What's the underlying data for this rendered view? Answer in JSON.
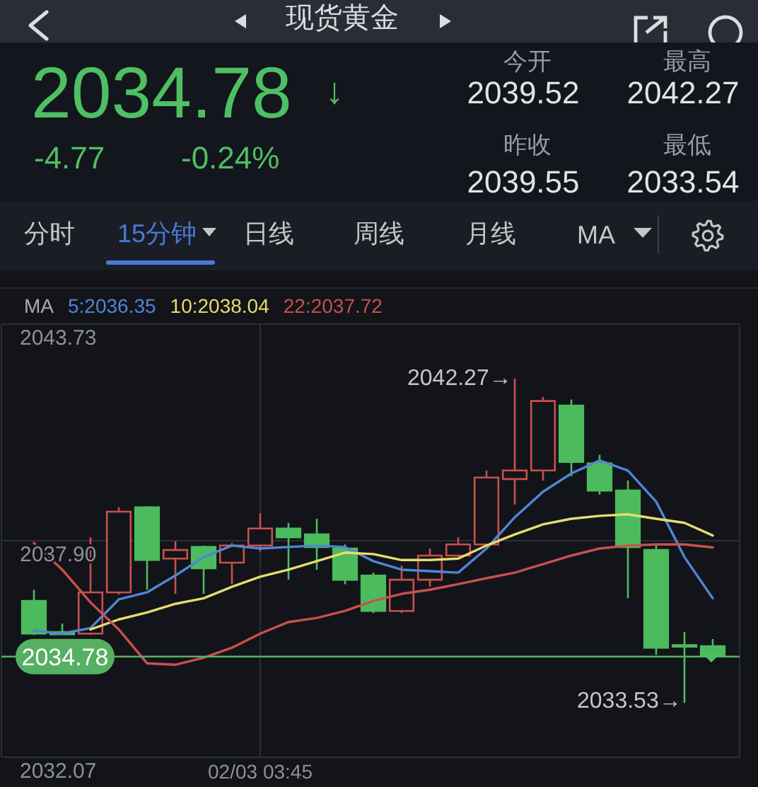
{
  "chart_data": {
    "type": "candlestick",
    "title": "现货黄金",
    "categories": [
      null,
      null,
      null,
      null,
      null,
      null,
      null,
      null,
      "02/03 03:45",
      null,
      null,
      null,
      null,
      null,
      null,
      null,
      null,
      null,
      null,
      null,
      null,
      null,
      null,
      null,
      null
    ],
    "ohlc": [
      [
        2036.28,
        2036.58,
        2035.36,
        2035.4
      ],
      [
        2035.44,
        2035.67,
        2035.36,
        2035.38
      ],
      [
        2035.4,
        2037.99,
        2035.36,
        2036.51
      ],
      [
        2036.51,
        2038.8,
        2036.45,
        2038.68
      ],
      [
        2038.8,
        2038.83,
        2036.58,
        2037.38
      ],
      [
        2037.42,
        2037.88,
        2036.47,
        2037.65
      ],
      [
        2037.73,
        2037.77,
        2036.47,
        2037.16
      ],
      [
        2037.31,
        2037.84,
        2036.73,
        2037.77
      ],
      [
        2037.77,
        2038.64,
        2037.61,
        2038.23
      ],
      [
        2038.23,
        2038.38,
        2036.85,
        2037.99
      ],
      [
        2038.07,
        2038.49,
        2037.12,
        2037.73
      ],
      [
        2037.69,
        2037.8,
        2036.73,
        2036.85
      ],
      [
        2036.96,
        2037.04,
        2035.95,
        2036.01
      ],
      [
        2036.01,
        2037.23,
        2035.95,
        2036.85
      ],
      [
        2036.85,
        2037.69,
        2036.66,
        2037.5
      ],
      [
        2037.5,
        2037.99,
        2037.46,
        2037.8
      ],
      [
        2037.8,
        2039.79,
        2037.73,
        2039.6
      ],
      [
        2039.56,
        2042.27,
        2038.87,
        2039.79
      ],
      [
        2039.79,
        2041.77,
        2039.52,
        2041.66
      ],
      [
        2041.54,
        2041.7,
        2039.64,
        2040.02
      ],
      [
        2039.98,
        2040.21,
        2039.14,
        2039.25
      ],
      [
        2039.25,
        2039.52,
        2036.35,
        2037.73
      ],
      [
        2037.65,
        2037.8,
        2034.83,
        2035.02
      ],
      [
        2035.09,
        2035.44,
        2033.53,
        2035.05
      ],
      [
        2035.06,
        2035.25,
        2034.78,
        2034.78
      ]
    ],
    "colors": [
      "#4cbb5e",
      "#4cbb5e",
      "#c9504c",
      "#c9504c",
      "#4cbb5e",
      "#c9504c",
      "#4cbb5e",
      "#c9504c",
      "#c9504c",
      "#4cbb5e",
      "#4cbb5e",
      "#4cbb5e",
      "#4cbb5e",
      "#c9504c",
      "#c9504c",
      "#c9504c",
      "#c9504c",
      "#c9504c",
      "#c9504c",
      "#4cbb5e",
      "#4cbb5e",
      "#4cbb5e",
      "#4cbb5e",
      "#4cbb5e",
      "#4cbb5e"
    ],
    "series": [
      {
        "type": "line",
        "name": "5:2036.35",
        "color": "#4f86d6",
        "values": [
          2035.48,
          2035.4,
          2035.55,
          2036.32,
          2036.51,
          2036.96,
          2037.46,
          2037.77,
          2037.69,
          2037.73,
          2037.77,
          2037.73,
          2037.35,
          2037.12,
          2037.08,
          2037.04,
          2037.69,
          2038.53,
          2039.22,
          2039.71,
          2040.06,
          2039.79,
          2038.95,
          2037.46,
          2036.35
        ]
      },
      {
        "type": "line",
        "name": "10:2038.04",
        "color": "#e6dc6e",
        "values": [
          null,
          null,
          2035.51,
          2035.78,
          2035.97,
          2036.2,
          2036.35,
          2036.66,
          2036.93,
          2037.12,
          2037.35,
          2037.58,
          2037.54,
          2037.38,
          2037.38,
          2037.42,
          2037.77,
          2038.07,
          2038.34,
          2038.49,
          2038.57,
          2038.61,
          2038.49,
          2038.38,
          2038.04
        ]
      },
      {
        "type": "line",
        "name": "22:2037.72",
        "color": "#c9504d",
        "values": [
          2037.84,
          2037.12,
          2036.24,
          2035.51,
          2034.6,
          2034.56,
          2034.75,
          2035.02,
          2035.4,
          2035.71,
          2035.82,
          2036.01,
          2036.28,
          2036.47,
          2036.58,
          2036.73,
          2036.89,
          2037.04,
          2037.27,
          2037.5,
          2037.69,
          2037.77,
          2037.8,
          2037.8,
          2037.72
        ]
      }
    ],
    "ylim": [
      2032.07,
      2043.73
    ],
    "yticks": [
      2043.73,
      {
        "value": 2037.9,
        "label": "2037.90"
      },
      2032.07
    ],
    "grid": true,
    "legend": "top left",
    "legend_title": "MA",
    "ref_lines": [
      {
        "axis": "y",
        "value": 2034.78,
        "label": "2034.78",
        "color": "#55b062"
      }
    ],
    "annotations": [
      "2034.78",
      "↓",
      "-4.77",
      "-0.24%",
      "今开",
      "2039.52",
      "最高",
      "2042.27",
      "昨收",
      "2039.55",
      "最低",
      "2033.54",
      "分时",
      "15分钟",
      "日线",
      "周线",
      "月线",
      "MA",
      "2042.27→",
      "2033.53→"
    ]
  }
}
